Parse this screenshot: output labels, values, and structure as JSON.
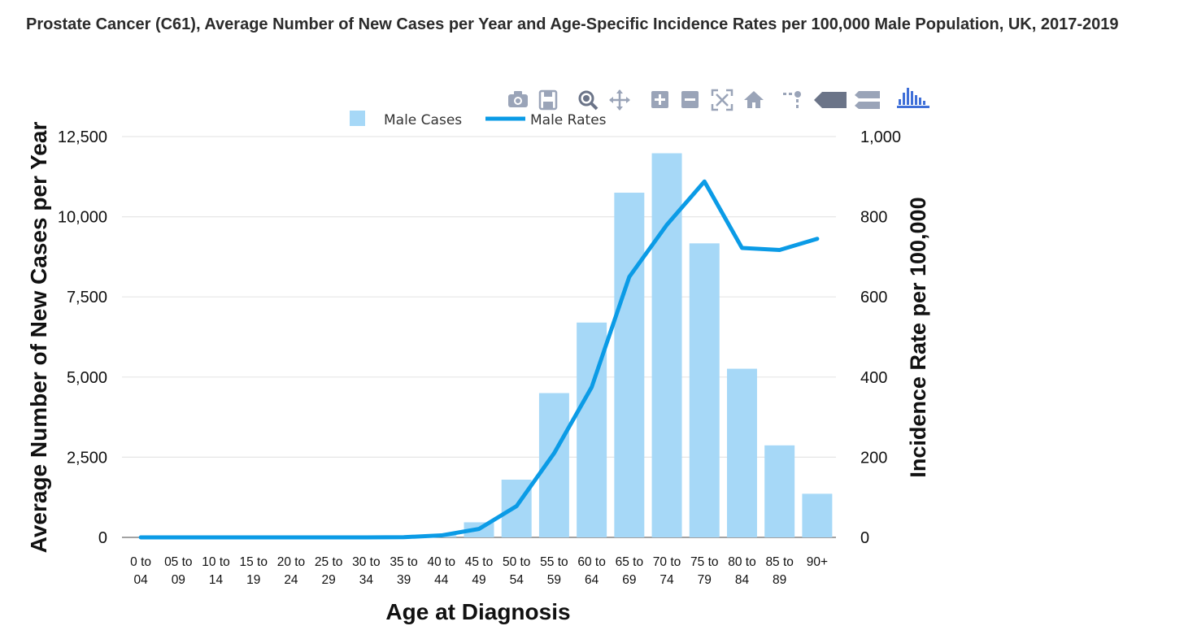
{
  "title": "Prostate Cancer (C61), Average Number of New Cases per Year and Age-Specific Incidence Rates per 100,000 Male Population, UK, 2017-2019",
  "toolbar": {
    "items": [
      "camera-icon",
      "save-icon",
      "zoom-icon",
      "pan-icon",
      "zoom-in-icon",
      "zoom-out-icon",
      "autoscale-icon",
      "reset-axes-icon",
      "spike-lines-icon",
      "hover-closest-icon",
      "hover-compare-icon",
      "plotly-logo-icon"
    ]
  },
  "colors": {
    "bar": "#a6d8f7",
    "line": "#0b9be6",
    "grid": "#e6e6e6",
    "tool": "#9aa4b8",
    "tool_dark": "#6b7488",
    "logo": "#3f6fd8"
  },
  "chart_data": {
    "type": "bar",
    "categories": [
      [
        "0 to",
        "04"
      ],
      [
        "05 to",
        "09"
      ],
      [
        "10 to",
        "14"
      ],
      [
        "15 to",
        "19"
      ],
      [
        "20 to",
        "24"
      ],
      [
        "25 to",
        "29"
      ],
      [
        "30 to",
        "34"
      ],
      [
        "35 to",
        "39"
      ],
      [
        "40 to",
        "44"
      ],
      [
        "45 to",
        "49"
      ],
      [
        "50 to",
        "54"
      ],
      [
        "55 to",
        "59"
      ],
      [
        "60 to",
        "64"
      ],
      [
        "65 to",
        "69"
      ],
      [
        "70 to",
        "74"
      ],
      [
        "75 to",
        "79"
      ],
      [
        "80 to",
        "84"
      ],
      [
        "85 to",
        "89"
      ],
      [
        "90+"
      ]
    ],
    "series": [
      {
        "name": "Male Cases",
        "type": "bar",
        "axis": "left",
        "values": [
          0,
          0,
          0,
          0,
          0,
          0,
          0,
          5,
          70,
          470,
          1800,
          4500,
          6700,
          10750,
          11980,
          9170,
          5260,
          2870,
          1360
        ]
      },
      {
        "name": "Male Rates",
        "type": "line",
        "axis": "right",
        "values": [
          0,
          0,
          0,
          0,
          0,
          0,
          0,
          0.5,
          5,
          21,
          78,
          210,
          375,
          650,
          780,
          888,
          722,
          717,
          745
        ]
      }
    ],
    "xlabel": "Age at Diagnosis",
    "ylabel": "Average Number of New Cases per Year",
    "y2label": "Incidence Rate per 100,000",
    "ylim": [
      0,
      12500
    ],
    "y2lim": [
      0,
      1000
    ],
    "yticks": [
      0,
      2500,
      5000,
      7500,
      10000,
      12500
    ],
    "yticklabels": [
      "0",
      "2,500",
      "5,000",
      "7,500",
      "10,000",
      "12,500"
    ],
    "y2ticks": [
      0,
      200,
      400,
      600,
      800,
      1000
    ],
    "y2ticklabels": [
      "0",
      "200",
      "400",
      "600",
      "800",
      "1,000"
    ],
    "legend": "top-center",
    "grid": true
  }
}
